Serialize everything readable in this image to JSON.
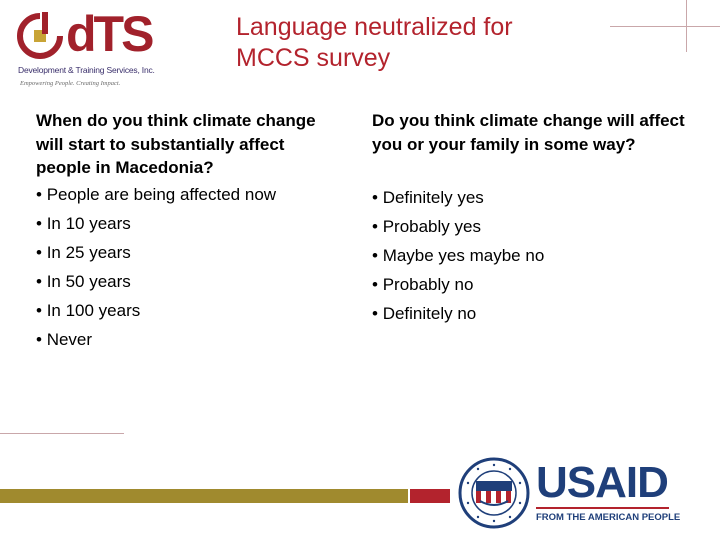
{
  "logo": {
    "name": "dTS",
    "subtitle": "Development & Training Services, Inc.",
    "tagline": "Empowering People. Creating Impact."
  },
  "title": {
    "line1": "Language neutralized for",
    "line2": "MCCS survey"
  },
  "left": {
    "question": "When do you think climate change will start to substantially affect people in Macedonia?",
    "options": [
      "People are being affected now",
      "In 10 years",
      "In 25 years",
      "In 50 years",
      "In 100 years",
      "Never"
    ]
  },
  "right": {
    "question": "Do you think climate change will affect you or your family in some way?",
    "options": [
      "Definitely yes",
      "Probably yes",
      "Maybe yes maybe no",
      "Probably no",
      "Definitely no"
    ]
  },
  "usaid": {
    "name": "USAID",
    "tagline": "FROM THE AMERICAN PEOPLE"
  },
  "colors": {
    "accent_red": "#b3232d",
    "olive": "#a08a2e",
    "usaid_blue": "#1f3f7a"
  }
}
